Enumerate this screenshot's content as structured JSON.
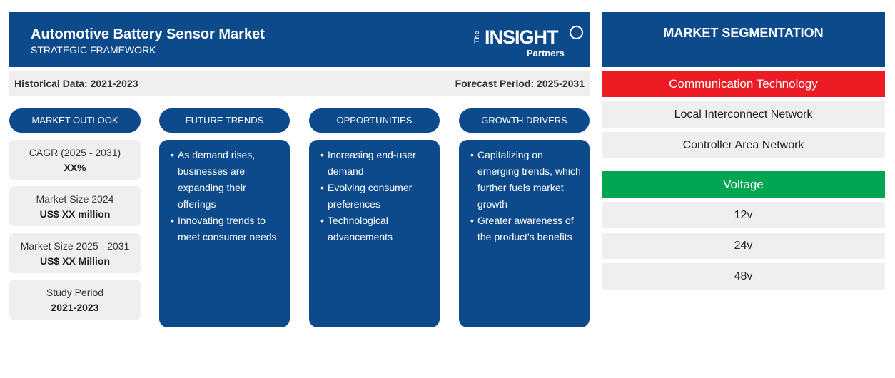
{
  "header": {
    "title": "Automotive Battery Sensor Market",
    "subtitle": "STRATEGIC FRAMEWORK",
    "logo": {
      "the": "The",
      "insight": "INSIGHT",
      "partners": "Partners"
    }
  },
  "periods": {
    "historical": "Historical Data: 2021-2023",
    "forecast": "Forecast Period: 2025-2031"
  },
  "columns": {
    "outlook": "MARKET OUTLOOK",
    "trends": "FUTURE TRENDS",
    "opportunities": "OPPORTUNITIES",
    "drivers": "GROWTH DRIVERS"
  },
  "outlook": [
    {
      "label": "CAGR (2025 - 2031)",
      "value": "XX%"
    },
    {
      "label": "Market Size 2024",
      "value": "US$ XX million"
    },
    {
      "label": "Market Size 2025 - 2031",
      "value": "US$ XX Million"
    },
    {
      "label": "Study Period",
      "value": "2021-2023"
    }
  ],
  "trends": [
    "As demand rises, businesses are expanding their offerings",
    "Innovating trends to meet consumer needs"
  ],
  "opportunities": [
    "Increasing end-user demand",
    "Evolving consumer preferences",
    "Technological advancements"
  ],
  "drivers": [
    "Capitalizing on emerging trends, which further fuels market growth",
    "Greater awareness of the product's benefits"
  ],
  "segmentation": {
    "title": "MARKET SEGMENTATION",
    "groups": [
      {
        "name": "Communication Technology",
        "color": "#ed1c24",
        "items": [
          "Local Interconnect Network",
          "Controller Area Network"
        ]
      },
      {
        "name": "Voltage",
        "color": "#00a651",
        "items": [
          "12v",
          "24v",
          "48v"
        ]
      }
    ]
  },
  "colors": {
    "brand_blue": "#0d4a8c",
    "panel_gray": "#efefef"
  }
}
